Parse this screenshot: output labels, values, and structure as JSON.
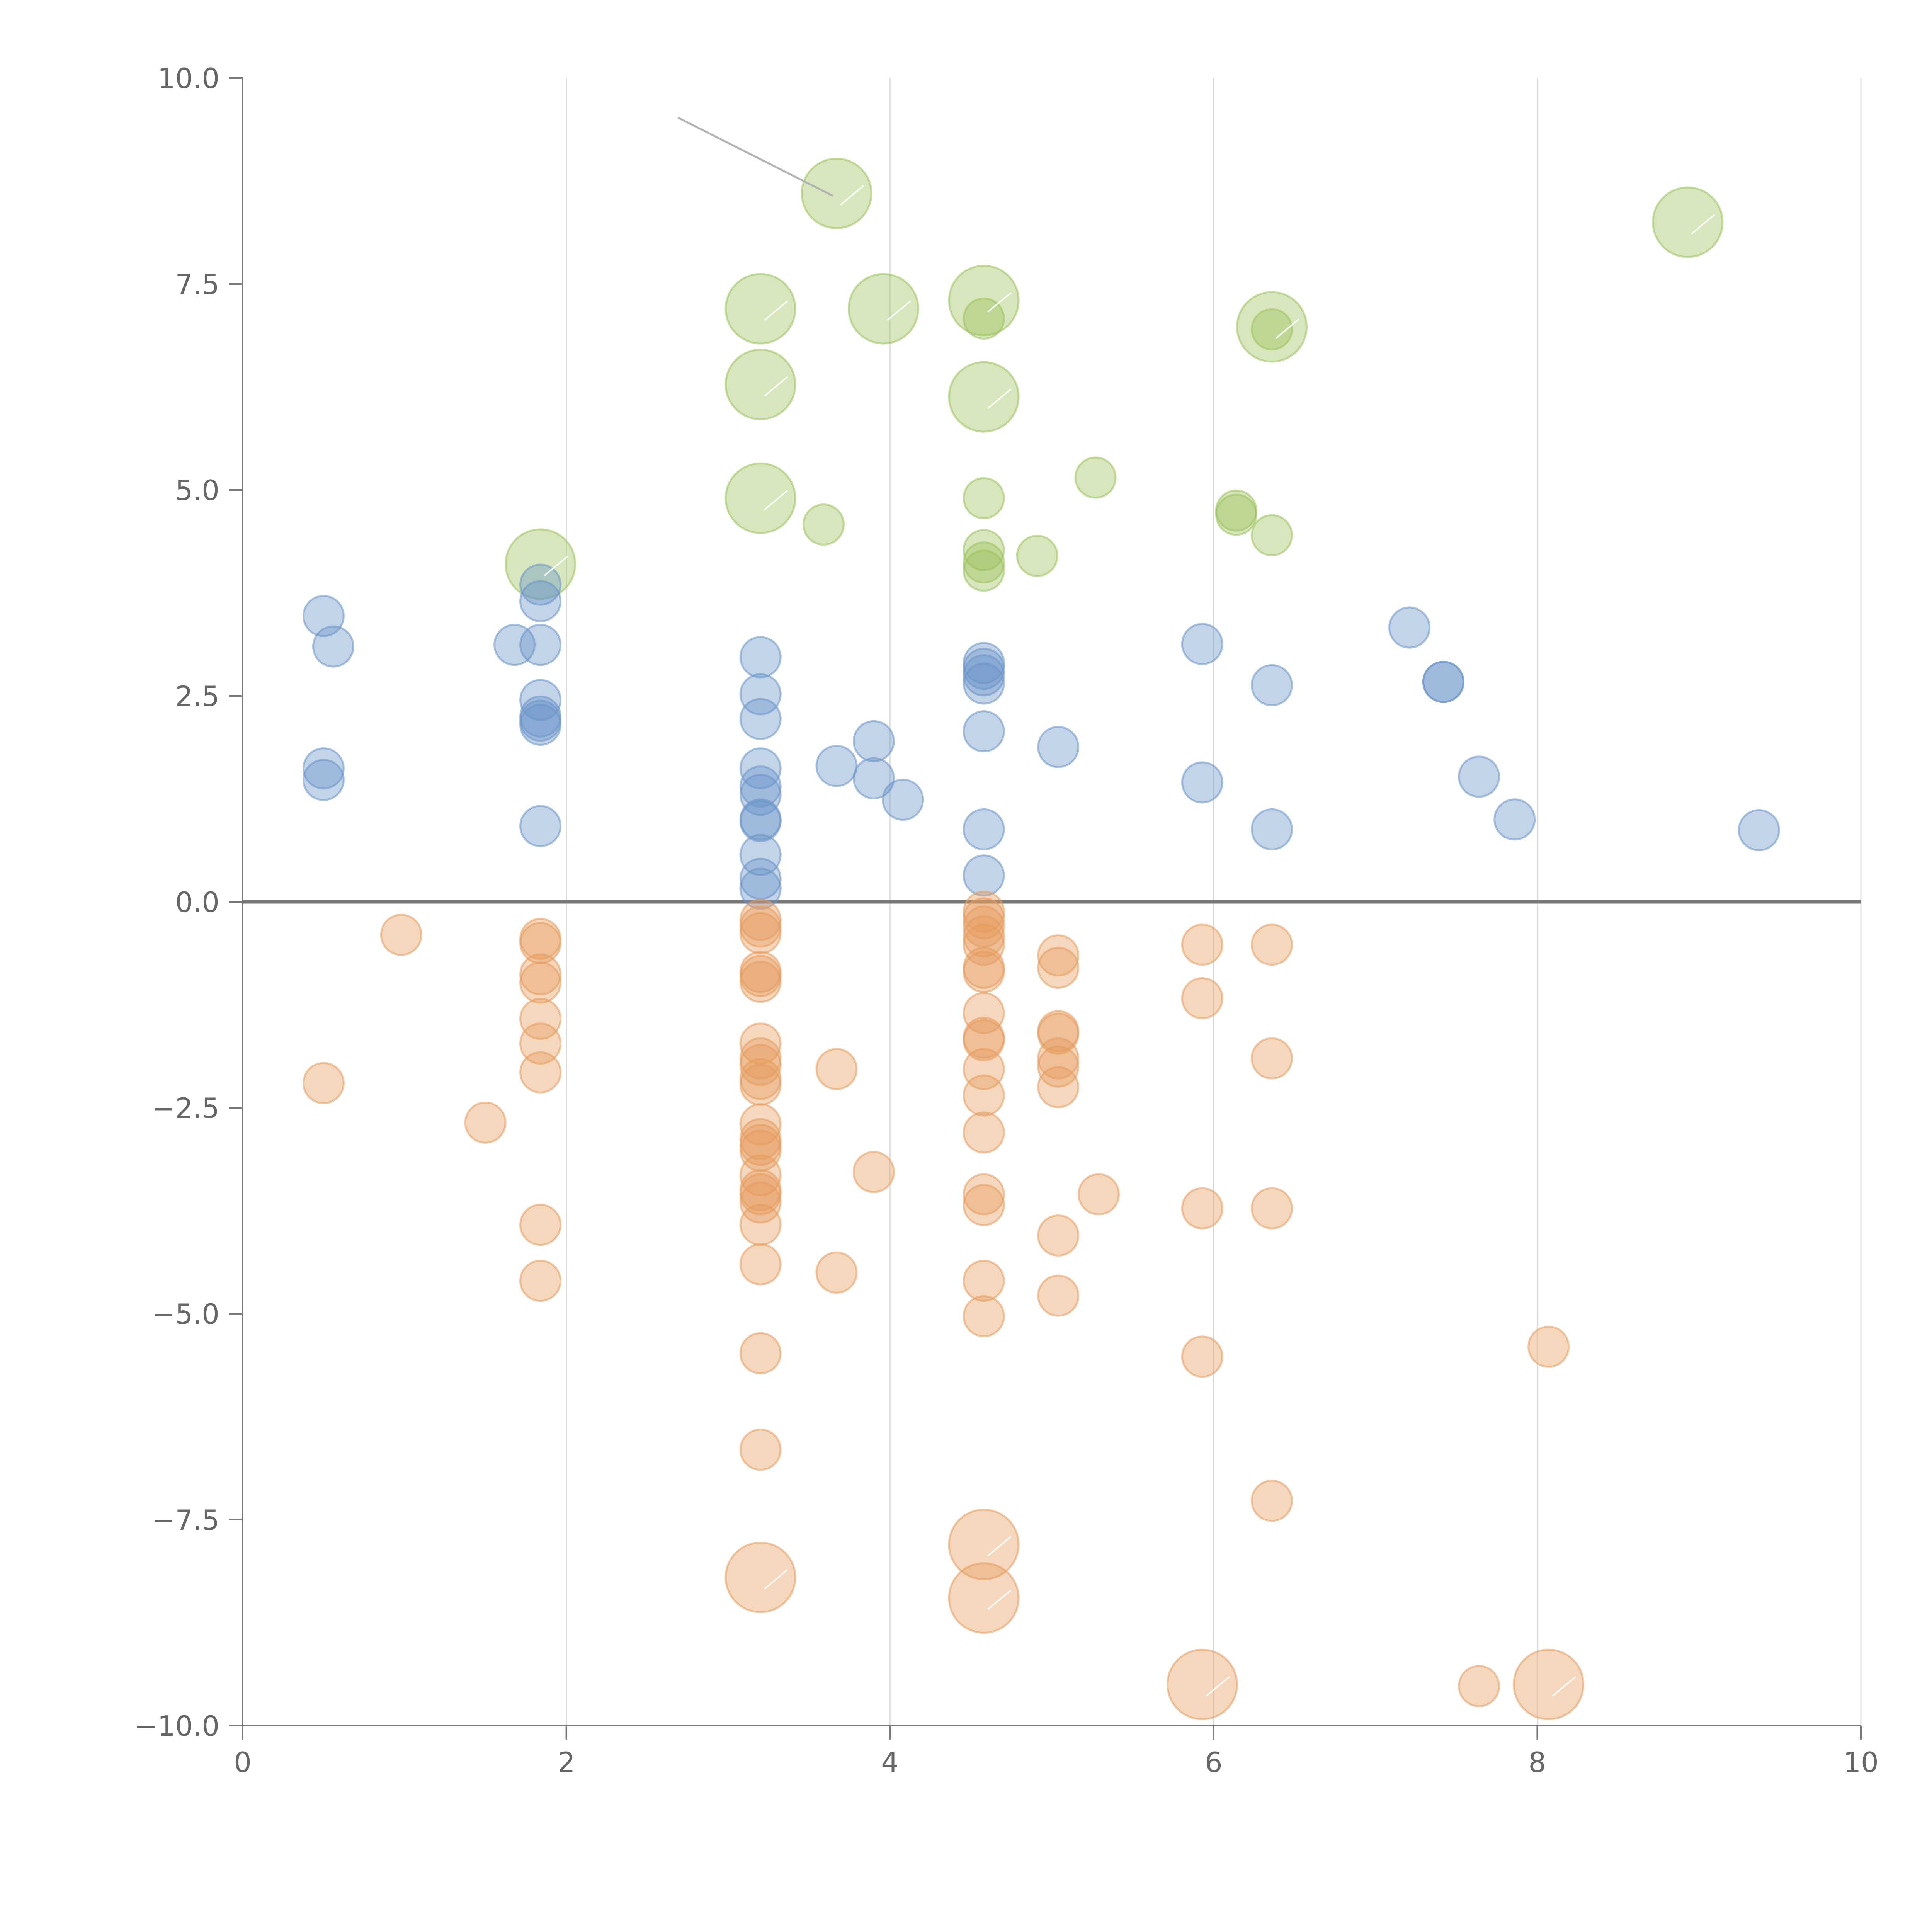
{
  "chart_data": {
    "type": "scatter",
    "title": "",
    "xlabel": "",
    "ylabel": "",
    "xlim": [
      0,
      10
    ],
    "ylim": [
      -10,
      10
    ],
    "x_ticks": [
      0,
      2,
      4,
      6,
      8,
      10
    ],
    "x_tick_labels": [
      "0",
      "2",
      "4",
      "6",
      "8",
      "10"
    ],
    "y_ticks": [
      10,
      7.5,
      5,
      2.5,
      0,
      -2.5,
      -5,
      -7.5,
      -10
    ],
    "y_tick_labels": [
      "10.0",
      "7.5",
      "5.0",
      "2.5",
      "0.0",
      "−2.5",
      "−5.0",
      "−7.5",
      "−10.0"
    ],
    "vertical_grid": true,
    "zero_line": 0,
    "series": [
      {
        "name": "green",
        "color": "#9bc15b",
        "points": [
          {
            "x": 3.67,
            "y": 8.6,
            "size": 3
          },
          {
            "x": 8.93,
            "y": 8.25,
            "size": 3
          },
          {
            "x": 3.2,
            "y": 7.2,
            "size": 3
          },
          {
            "x": 3.96,
            "y": 7.2,
            "size": 3
          },
          {
            "x": 4.58,
            "y": 7.3,
            "size": 3
          },
          {
            "x": 4.58,
            "y": 7.08,
            "size": 1
          },
          {
            "x": 6.36,
            "y": 6.98,
            "size": 3
          },
          {
            "x": 6.36,
            "y": 6.95,
            "size": 1
          },
          {
            "x": 3.2,
            "y": 6.28,
            "size": 3
          },
          {
            "x": 4.58,
            "y": 6.13,
            "size": 3
          },
          {
            "x": 5.27,
            "y": 5.15,
            "size": 1
          },
          {
            "x": 3.2,
            "y": 4.9,
            "size": 3
          },
          {
            "x": 4.58,
            "y": 4.9,
            "size": 1
          },
          {
            "x": 6.14,
            "y": 4.75,
            "size": 1
          },
          {
            "x": 6.14,
            "y": 4.7,
            "size": 1
          },
          {
            "x": 3.59,
            "y": 4.58,
            "size": 1
          },
          {
            "x": 6.36,
            "y": 4.45,
            "size": 1
          },
          {
            "x": 4.58,
            "y": 4.27,
            "size": 1
          },
          {
            "x": 4.91,
            "y": 4.2,
            "size": 1
          },
          {
            "x": 4.58,
            "y": 4.12,
            "size": 1
          },
          {
            "x": 1.84,
            "y": 4.1,
            "size": 3
          },
          {
            "x": 4.58,
            "y": 4.02,
            "size": 1
          }
        ]
      },
      {
        "name": "blue",
        "color": "#6a93c8",
        "points": [
          {
            "x": 1.84,
            "y": 3.85,
            "size": 1
          },
          {
            "x": 1.84,
            "y": 3.65,
            "size": 1
          },
          {
            "x": 0.5,
            "y": 3.47,
            "size": 1
          },
          {
            "x": 7.21,
            "y": 3.33,
            "size": 1
          },
          {
            "x": 5.93,
            "y": 3.13,
            "size": 1
          },
          {
            "x": 1.68,
            "y": 3.12,
            "size": 1
          },
          {
            "x": 1.84,
            "y": 3.12,
            "size": 1
          },
          {
            "x": 0.56,
            "y": 3.1,
            "size": 1
          },
          {
            "x": 3.2,
            "y": 2.97,
            "size": 1
          },
          {
            "x": 4.58,
            "y": 2.9,
            "size": 1
          },
          {
            "x": 4.58,
            "y": 2.83,
            "size": 1
          },
          {
            "x": 4.58,
            "y": 2.75,
            "size": 1
          },
          {
            "x": 7.42,
            "y": 2.67,
            "size": 1
          },
          {
            "x": 7.42,
            "y": 2.67,
            "size": 1
          },
          {
            "x": 4.58,
            "y": 2.65,
            "size": 1
          },
          {
            "x": 6.36,
            "y": 2.63,
            "size": 1
          },
          {
            "x": 3.2,
            "y": 2.52,
            "size": 1
          },
          {
            "x": 1.84,
            "y": 2.45,
            "size": 1
          },
          {
            "x": 1.84,
            "y": 2.25,
            "size": 1
          },
          {
            "x": 3.2,
            "y": 2.22,
            "size": 1
          },
          {
            "x": 1.84,
            "y": 2.2,
            "size": 1
          },
          {
            "x": 1.84,
            "y": 2.15,
            "size": 1
          },
          {
            "x": 4.58,
            "y": 2.07,
            "size": 1
          },
          {
            "x": 3.9,
            "y": 1.95,
            "size": 1
          },
          {
            "x": 5.04,
            "y": 1.88,
            "size": 1
          },
          {
            "x": 3.67,
            "y": 1.65,
            "size": 1
          },
          {
            "x": 0.5,
            "y": 1.62,
            "size": 1
          },
          {
            "x": 3.2,
            "y": 1.62,
            "size": 1
          },
          {
            "x": 7.64,
            "y": 1.52,
            "size": 1
          },
          {
            "x": 3.9,
            "y": 1.5,
            "size": 1
          },
          {
            "x": 0.5,
            "y": 1.48,
            "size": 1
          },
          {
            "x": 5.93,
            "y": 1.45,
            "size": 1
          },
          {
            "x": 3.2,
            "y": 1.4,
            "size": 1
          },
          {
            "x": 3.2,
            "y": 1.3,
            "size": 1
          },
          {
            "x": 4.08,
            "y": 1.24,
            "size": 1
          },
          {
            "x": 7.86,
            "y": 1.0,
            "size": 1
          },
          {
            "x": 3.2,
            "y": 1.0,
            "size": 1
          },
          {
            "x": 3.2,
            "y": 0.98,
            "size": 1
          },
          {
            "x": 1.84,
            "y": 0.92,
            "size": 1
          },
          {
            "x": 6.36,
            "y": 0.88,
            "size": 1
          },
          {
            "x": 4.58,
            "y": 0.88,
            "size": 1
          },
          {
            "x": 9.37,
            "y": 0.87,
            "size": 1
          },
          {
            "x": 3.2,
            "y": 0.57,
            "size": 1
          },
          {
            "x": 4.58,
            "y": 0.32,
            "size": 1
          },
          {
            "x": 3.2,
            "y": 0.28,
            "size": 1
          },
          {
            "x": 3.2,
            "y": 0.16,
            "size": 1
          }
        ]
      },
      {
        "name": "orange",
        "color": "#e59a5c",
        "points": [
          {
            "x": 4.58,
            "y": -0.12,
            "size": 1
          },
          {
            "x": 4.58,
            "y": -0.2,
            "size": 1
          },
          {
            "x": 3.2,
            "y": -0.22,
            "size": 1
          },
          {
            "x": 3.2,
            "y": -0.3,
            "size": 1
          },
          {
            "x": 4.58,
            "y": -0.3,
            "size": 1
          },
          {
            "x": 3.2,
            "y": -0.38,
            "size": 1
          },
          {
            "x": 0.98,
            "y": -0.4,
            "size": 1
          },
          {
            "x": 4.58,
            "y": -0.42,
            "size": 1
          },
          {
            "x": 1.84,
            "y": -0.45,
            "size": 1
          },
          {
            "x": 1.84,
            "y": -0.5,
            "size": 1
          },
          {
            "x": 4.58,
            "y": -0.52,
            "size": 1
          },
          {
            "x": 5.93,
            "y": -0.52,
            "size": 1
          },
          {
            "x": 6.36,
            "y": -0.52,
            "size": 1
          },
          {
            "x": 5.04,
            "y": -0.65,
            "size": 1
          },
          {
            "x": 4.58,
            "y": -0.8,
            "size": 1
          },
          {
            "x": 5.04,
            "y": -0.8,
            "size": 1
          },
          {
            "x": 4.58,
            "y": -0.85,
            "size": 1
          },
          {
            "x": 3.2,
            "y": -0.85,
            "size": 1
          },
          {
            "x": 1.84,
            "y": -0.88,
            "size": 1
          },
          {
            "x": 3.2,
            "y": -0.9,
            "size": 1
          },
          {
            "x": 3.2,
            "y": -0.97,
            "size": 1
          },
          {
            "x": 1.84,
            "y": -0.98,
            "size": 1
          },
          {
            "x": 5.93,
            "y": -1.17,
            "size": 1
          },
          {
            "x": 4.58,
            "y": -1.35,
            "size": 1
          },
          {
            "x": 1.84,
            "y": -1.42,
            "size": 1
          },
          {
            "x": 5.04,
            "y": -1.57,
            "size": 1
          },
          {
            "x": 5.04,
            "y": -1.6,
            "size": 1
          },
          {
            "x": 4.58,
            "y": -1.65,
            "size": 1
          },
          {
            "x": 4.58,
            "y": -1.68,
            "size": 1
          },
          {
            "x": 1.84,
            "y": -1.72,
            "size": 1
          },
          {
            "x": 3.2,
            "y": -1.72,
            "size": 1
          },
          {
            "x": 5.04,
            "y": -1.9,
            "size": 1
          },
          {
            "x": 6.36,
            "y": -1.9,
            "size": 1
          },
          {
            "x": 3.2,
            "y": -1.9,
            "size": 1
          },
          {
            "x": 3.2,
            "y": -1.98,
            "size": 1
          },
          {
            "x": 5.04,
            "y": -2.0,
            "size": 1
          },
          {
            "x": 3.67,
            "y": -2.03,
            "size": 1
          },
          {
            "x": 4.58,
            "y": -2.03,
            "size": 1
          },
          {
            "x": 1.84,
            "y": -2.07,
            "size": 1
          },
          {
            "x": 3.2,
            "y": -2.15,
            "size": 1
          },
          {
            "x": 0.5,
            "y": -2.2,
            "size": 1
          },
          {
            "x": 3.2,
            "y": -2.22,
            "size": 1
          },
          {
            "x": 5.04,
            "y": -2.25,
            "size": 1
          },
          {
            "x": 4.58,
            "y": -2.35,
            "size": 1
          },
          {
            "x": 1.5,
            "y": -2.68,
            "size": 1
          },
          {
            "x": 3.2,
            "y": -2.7,
            "size": 1
          },
          {
            "x": 4.58,
            "y": -2.8,
            "size": 1
          },
          {
            "x": 3.2,
            "y": -2.88,
            "size": 1
          },
          {
            "x": 3.2,
            "y": -2.95,
            "size": 1
          },
          {
            "x": 3.2,
            "y": -3.02,
            "size": 1
          },
          {
            "x": 3.9,
            "y": -3.28,
            "size": 1
          },
          {
            "x": 3.2,
            "y": -3.32,
            "size": 1
          },
          {
            "x": 3.2,
            "y": -3.5,
            "size": 1
          },
          {
            "x": 3.2,
            "y": -3.55,
            "size": 1
          },
          {
            "x": 5.29,
            "y": -3.55,
            "size": 1
          },
          {
            "x": 4.58,
            "y": -3.55,
            "size": 1
          },
          {
            "x": 3.2,
            "y": -3.65,
            "size": 1
          },
          {
            "x": 4.58,
            "y": -3.68,
            "size": 1
          },
          {
            "x": 5.93,
            "y": -3.72,
            "size": 1
          },
          {
            "x": 6.36,
            "y": -3.72,
            "size": 1
          },
          {
            "x": 1.84,
            "y": -3.92,
            "size": 1
          },
          {
            "x": 3.2,
            "y": -3.92,
            "size": 1
          },
          {
            "x": 5.04,
            "y": -4.05,
            "size": 1
          },
          {
            "x": 3.2,
            "y": -4.4,
            "size": 1
          },
          {
            "x": 3.67,
            "y": -4.5,
            "size": 1
          },
          {
            "x": 1.84,
            "y": -4.6,
            "size": 1
          },
          {
            "x": 4.58,
            "y": -4.6,
            "size": 1
          },
          {
            "x": 5.04,
            "y": -4.78,
            "size": 1
          },
          {
            "x": 4.58,
            "y": -5.03,
            "size": 1
          },
          {
            "x": 8.07,
            "y": -5.4,
            "size": 1
          },
          {
            "x": 3.2,
            "y": -5.48,
            "size": 1
          },
          {
            "x": 5.93,
            "y": -5.52,
            "size": 1
          },
          {
            "x": 3.2,
            "y": -6.65,
            "size": 1
          },
          {
            "x": 6.36,
            "y": -7.27,
            "size": 1
          },
          {
            "x": 4.58,
            "y": -7.8,
            "size": 3
          },
          {
            "x": 3.2,
            "y": -8.2,
            "size": 3
          },
          {
            "x": 4.58,
            "y": -8.45,
            "size": 3
          },
          {
            "x": 5.93,
            "y": -9.5,
            "size": 3
          },
          {
            "x": 7.64,
            "y": -9.52,
            "size": 1
          },
          {
            "x": 8.07,
            "y": -9.5,
            "size": 3
          }
        ]
      }
    ]
  }
}
